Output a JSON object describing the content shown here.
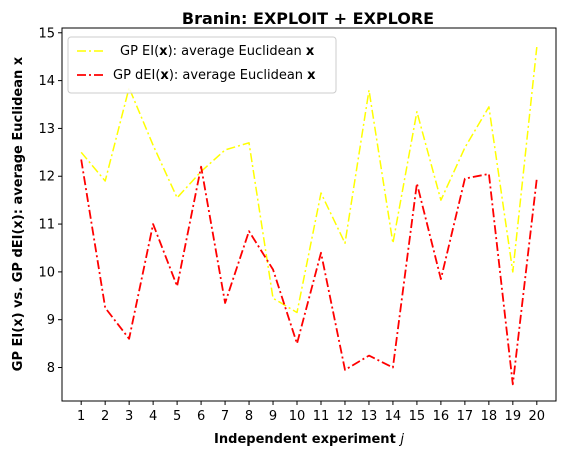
{
  "chart_data": {
    "type": "line",
    "title": "Branin: EXPLOIT + EXPLORE",
    "xlabel_main": "Independent experiment ",
    "xlabel_var": "j",
    "ylabel": "GP EI(x) vs. GP dEI(x): average Euclidean x",
    "x": [
      1,
      2,
      3,
      4,
      5,
      6,
      7,
      8,
      9,
      10,
      11,
      12,
      13,
      14,
      15,
      16,
      17,
      18,
      19,
      20
    ],
    "xlim": [
      0.2,
      20.8
    ],
    "ylim": [
      7.3,
      15.1
    ],
    "yticks": [
      8,
      9,
      10,
      11,
      12,
      13,
      14,
      15
    ],
    "series": [
      {
        "name": "GP EI(x): average Euclidean x",
        "legend": {
          "pre": "GP EI(",
          "bold1": "x",
          "mid": "): average Euclidean ",
          "bold2": "x"
        },
        "color": "#ffff00",
        "values": [
          12.5,
          11.9,
          13.85,
          12.65,
          11.55,
          12.1,
          12.55,
          12.7,
          9.45,
          9.15,
          11.65,
          10.6,
          13.8,
          10.6,
          13.35,
          11.5,
          12.6,
          13.45,
          10.0,
          14.7
        ]
      },
      {
        "name": "GP dEI(x): average Euclidean x",
        "legend": {
          "pre": "GP dEI(",
          "bold1": "x",
          "mid": "): average Euclidean ",
          "bold2": "x"
        },
        "color": "#ff0000",
        "values": [
          12.35,
          9.25,
          8.6,
          11.0,
          9.7,
          12.2,
          9.35,
          10.85,
          10.05,
          8.5,
          10.4,
          7.95,
          8.25,
          8.0,
          11.85,
          9.85,
          11.95,
          12.05,
          7.65,
          11.95
        ]
      }
    ],
    "legend_position": "upper-left",
    "grid": false
  }
}
